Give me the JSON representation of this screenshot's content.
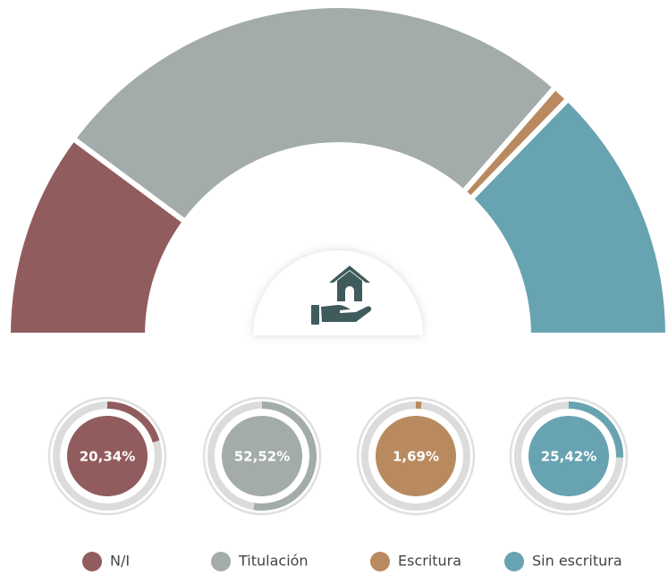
{
  "chart_data": {
    "type": "pie",
    "categories": [
      "N/I",
      "Titulación",
      "Escritura",
      "Sin escritura"
    ],
    "values": [
      20.34,
      52.52,
      1.69,
      25.42
    ],
    "value_labels": [
      "20,34%",
      "52,52%",
      "1,69%",
      "25,42%"
    ],
    "colors": [
      "#915c5e",
      "#a3abab",
      "#b98a5f",
      "#67a3b0"
    ]
  }
}
